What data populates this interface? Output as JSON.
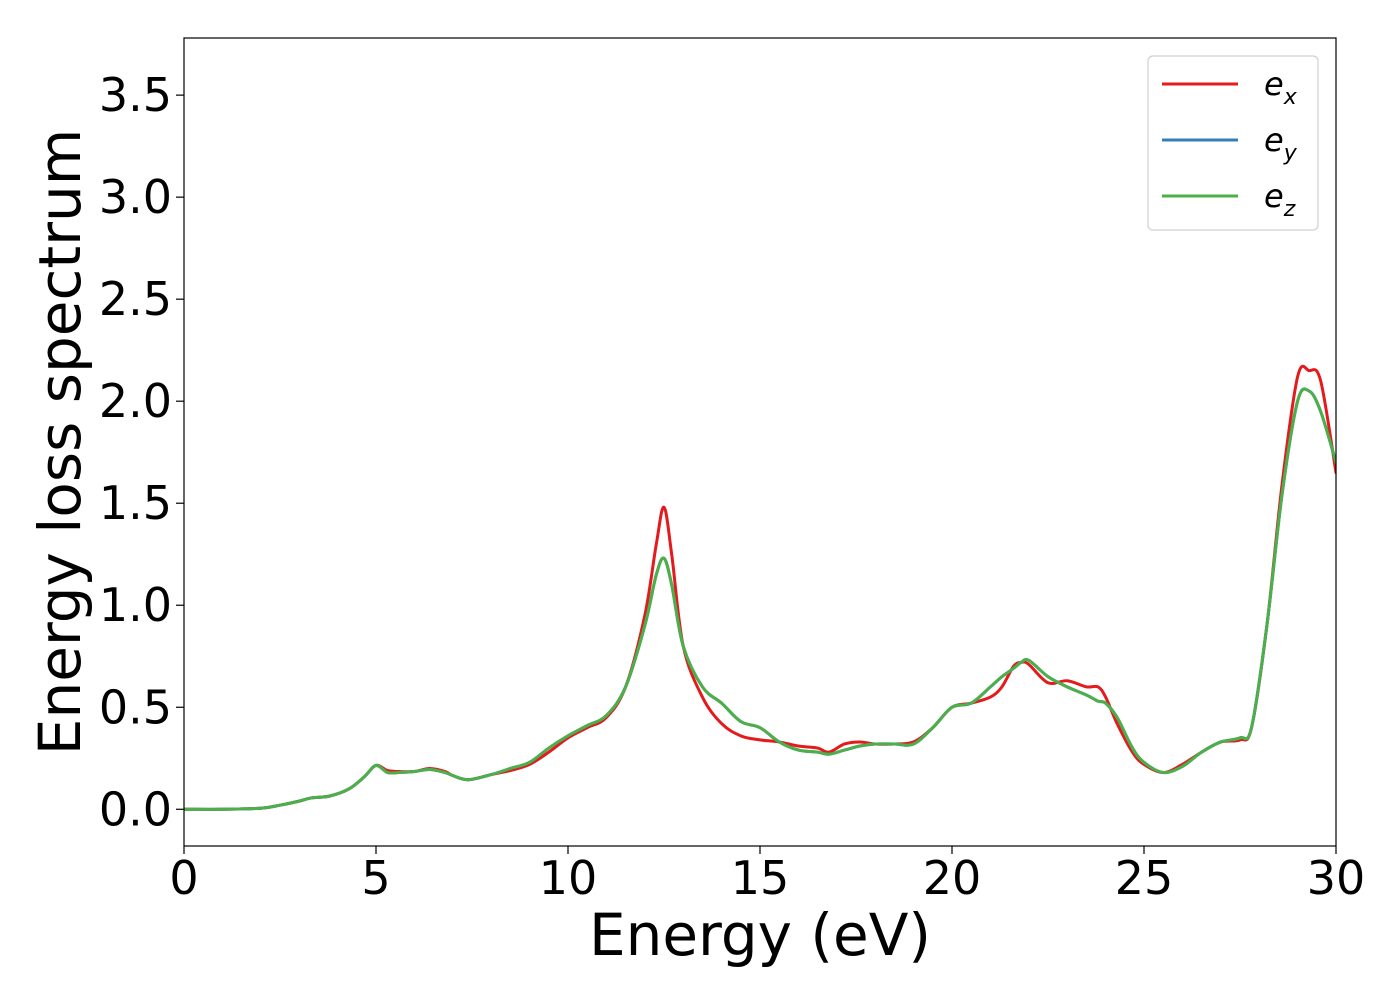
{
  "chart_data": {
    "type": "line",
    "xlabel": "Energy (eV)",
    "ylabel": "Energy loss spectrum",
    "xlim": [
      0,
      30
    ],
    "ylim": [
      -0.18,
      3.78
    ],
    "xticks": [
      0,
      5,
      10,
      15,
      20,
      25,
      30
    ],
    "yticks": [
      0.0,
      0.5,
      1.0,
      1.5,
      2.0,
      2.5,
      3.0,
      3.5
    ],
    "xtick_labels": [
      "0",
      "5",
      "10",
      "15",
      "20",
      "25",
      "30"
    ],
    "ytick_labels": [
      "0.0",
      "0.5",
      "1.0",
      "1.5",
      "2.0",
      "2.5",
      "3.0",
      "3.5"
    ],
    "grid": false,
    "legend_position": "top-right",
    "series": [
      {
        "name": "e",
        "subscript": "x",
        "color": "#e41a1c",
        "x": [
          0,
          1,
          2,
          2.5,
          3,
          3.3,
          3.8,
          4.3,
          4.7,
          5.0,
          5.3,
          5.6,
          6.0,
          6.4,
          6.8,
          7.0,
          7.4,
          8.0,
          8.5,
          9.0,
          9.5,
          10.0,
          10.5,
          11.0,
          11.5,
          12.0,
          12.3,
          12.5,
          12.7,
          13.0,
          13.5,
          14.0,
          14.5,
          15.0,
          15.5,
          16.0,
          16.5,
          16.8,
          17.2,
          17.6,
          18.0,
          18.5,
          19.0,
          19.5,
          20.0,
          20.5,
          21.0,
          21.3,
          21.6,
          21.8,
          22.0,
          22.5,
          23.0,
          23.5,
          23.8,
          24.0,
          24.3,
          24.7,
          25.0,
          25.5,
          26.0,
          26.5,
          27.0,
          27.5,
          27.8,
          28.2,
          28.6,
          29.0,
          29.3,
          29.6,
          30.0
        ],
        "y": [
          0.0,
          0.0,
          0.005,
          0.02,
          0.04,
          0.055,
          0.065,
          0.1,
          0.16,
          0.215,
          0.19,
          0.185,
          0.185,
          0.2,
          0.185,
          0.165,
          0.145,
          0.17,
          0.19,
          0.22,
          0.28,
          0.35,
          0.4,
          0.45,
          0.6,
          0.95,
          1.3,
          1.48,
          1.25,
          0.8,
          0.55,
          0.42,
          0.36,
          0.34,
          0.33,
          0.31,
          0.3,
          0.28,
          0.32,
          0.33,
          0.32,
          0.32,
          0.33,
          0.4,
          0.5,
          0.52,
          0.55,
          0.6,
          0.7,
          0.72,
          0.71,
          0.62,
          0.63,
          0.6,
          0.6,
          0.55,
          0.42,
          0.28,
          0.22,
          0.18,
          0.22,
          0.28,
          0.33,
          0.34,
          0.4,
          0.9,
          1.6,
          2.12,
          2.15,
          2.1,
          1.65
        ]
      },
      {
        "name": "e",
        "subscript": "y",
        "color": "#377eb8",
        "x": [
          0,
          1,
          2,
          2.5,
          3,
          3.3,
          3.8,
          4.3,
          4.7,
          5.0,
          5.3,
          5.6,
          6.0,
          6.4,
          6.8,
          7.0,
          7.4,
          8.0,
          8.5,
          9.0,
          9.5,
          10.0,
          10.5,
          11.0,
          11.5,
          12.0,
          12.3,
          12.5,
          12.7,
          13.0,
          13.5,
          14.0,
          14.5,
          15.0,
          15.5,
          16.0,
          16.5,
          16.8,
          17.2,
          17.6,
          18.0,
          18.5,
          19.0,
          19.5,
          20.0,
          20.5,
          21.0,
          21.3,
          21.6,
          21.8,
          22.0,
          22.5,
          23.0,
          23.5,
          23.8,
          24.0,
          24.3,
          24.7,
          25.0,
          25.5,
          26.0,
          26.5,
          27.0,
          27.5,
          27.8,
          28.2,
          28.6,
          29.0,
          29.3,
          29.6,
          30.0
        ],
        "y": [
          0.0,
          0.0,
          0.005,
          0.02,
          0.04,
          0.055,
          0.065,
          0.1,
          0.16,
          0.215,
          0.18,
          0.18,
          0.185,
          0.195,
          0.18,
          0.165,
          0.145,
          0.17,
          0.2,
          0.23,
          0.3,
          0.36,
          0.41,
          0.46,
          0.6,
          0.9,
          1.15,
          1.23,
          1.1,
          0.8,
          0.6,
          0.52,
          0.43,
          0.4,
          0.33,
          0.29,
          0.28,
          0.27,
          0.29,
          0.31,
          0.32,
          0.32,
          0.32,
          0.4,
          0.5,
          0.52,
          0.6,
          0.65,
          0.69,
          0.72,
          0.73,
          0.65,
          0.6,
          0.56,
          0.53,
          0.52,
          0.45,
          0.3,
          0.23,
          0.18,
          0.21,
          0.28,
          0.33,
          0.35,
          0.4,
          0.9,
          1.55,
          2.0,
          2.05,
          1.95,
          1.7
        ]
      },
      {
        "name": "e",
        "subscript": "z",
        "color": "#4daf4a",
        "x": [
          0,
          1,
          2,
          2.5,
          3,
          3.3,
          3.8,
          4.3,
          4.7,
          5.0,
          5.3,
          5.6,
          6.0,
          6.4,
          6.8,
          7.0,
          7.4,
          8.0,
          8.5,
          9.0,
          9.5,
          10.0,
          10.5,
          11.0,
          11.5,
          12.0,
          12.3,
          12.5,
          12.7,
          13.0,
          13.5,
          14.0,
          14.5,
          15.0,
          15.5,
          16.0,
          16.5,
          16.8,
          17.2,
          17.6,
          18.0,
          18.5,
          19.0,
          19.5,
          20.0,
          20.5,
          21.0,
          21.3,
          21.6,
          21.8,
          22.0,
          22.5,
          23.0,
          23.5,
          23.8,
          24.0,
          24.3,
          24.7,
          25.0,
          25.5,
          26.0,
          26.5,
          27.0,
          27.5,
          27.8,
          28.2,
          28.6,
          29.0,
          29.3,
          29.6,
          30.0
        ],
        "y": [
          0.0,
          0.0,
          0.005,
          0.02,
          0.04,
          0.055,
          0.065,
          0.1,
          0.16,
          0.215,
          0.18,
          0.18,
          0.185,
          0.195,
          0.18,
          0.165,
          0.145,
          0.17,
          0.2,
          0.23,
          0.3,
          0.36,
          0.41,
          0.46,
          0.6,
          0.9,
          1.15,
          1.23,
          1.1,
          0.8,
          0.6,
          0.52,
          0.43,
          0.4,
          0.33,
          0.29,
          0.28,
          0.27,
          0.29,
          0.31,
          0.32,
          0.32,
          0.32,
          0.4,
          0.5,
          0.52,
          0.6,
          0.65,
          0.69,
          0.72,
          0.73,
          0.65,
          0.6,
          0.56,
          0.53,
          0.52,
          0.45,
          0.3,
          0.23,
          0.18,
          0.21,
          0.28,
          0.33,
          0.35,
          0.4,
          0.9,
          1.55,
          2.0,
          2.05,
          1.95,
          1.7
        ]
      }
    ]
  }
}
